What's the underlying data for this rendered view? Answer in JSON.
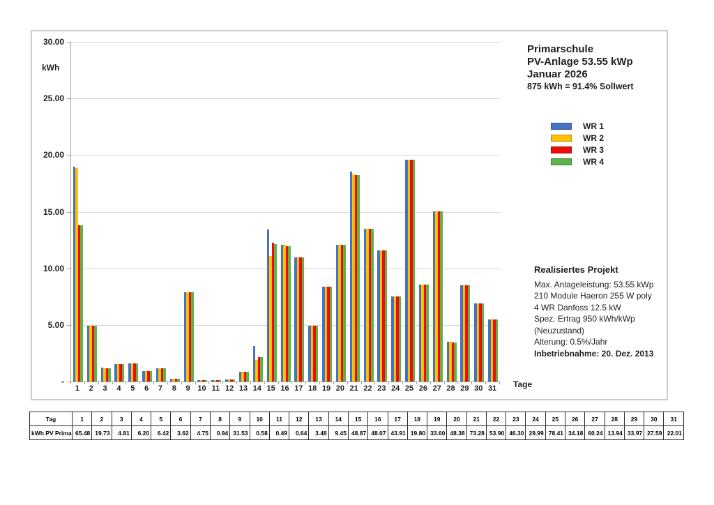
{
  "chart": {
    "y_axis_label": "kWh",
    "x_axis_label": "Tage",
    "y_ticks": [
      "30.00",
      "25.00",
      "20.00",
      "15.00",
      "10.00",
      "5.00",
      "-"
    ],
    "title_lines": [
      "Primarschule",
      "PV-Anlage 53.55 kWp",
      "Januar 2026"
    ],
    "subtitle": "875 kWh = 91.4% Sollwert",
    "project_info": {
      "heading": "Realisiertes Projekt",
      "lines": [
        "Max. Anlageleistung: 53.55 kWp",
        "210 Module Haeron 255 W poly",
        "4 WR Danfoss 12.5 kW",
        "Spez. Ertrag 950 kWh/kWp",
        "(Neuzustand)",
        "Alterung: 0.5%/Jahr"
      ],
      "commissioning": "Inbetriebnahme: 20. Dez. 2013"
    }
  },
  "chart_data": {
    "type": "bar",
    "title": "Primarschule PV-Anlage 53.55 kWp Januar 2026",
    "xlabel": "Tage",
    "ylabel": "kWh",
    "ylim": [
      0,
      30
    ],
    "grid": true,
    "legend_position": "right",
    "categories": [
      1,
      2,
      3,
      4,
      5,
      6,
      7,
      8,
      9,
      10,
      11,
      12,
      13,
      14,
      15,
      16,
      17,
      18,
      19,
      20,
      21,
      22,
      23,
      24,
      25,
      26,
      27,
      28,
      29,
      30,
      31
    ],
    "series": [
      {
        "name": "WR 1",
        "color": "#4472C4",
        "values": [
          19.0,
          4.94,
          1.21,
          1.55,
          1.61,
          0.91,
          1.19,
          0.24,
          7.89,
          0.15,
          0.13,
          0.16,
          0.87,
          3.17,
          13.4,
          12.1,
          10.98,
          4.95,
          8.4,
          12.1,
          18.55,
          13.48,
          11.58,
          7.5,
          19.61,
          8.55,
          15.06,
          3.49,
          8.5,
          6.9,
          5.51
        ]
      },
      {
        "name": "WR 2",
        "color": "#FFC000",
        "values": [
          18.85,
          4.93,
          1.2,
          1.55,
          1.61,
          0.91,
          1.19,
          0.24,
          7.88,
          0.15,
          0.12,
          0.16,
          0.87,
          1.92,
          11.1,
          12.05,
          10.98,
          4.95,
          8.4,
          12.1,
          18.27,
          13.48,
          11.58,
          7.5,
          19.6,
          8.55,
          15.06,
          3.49,
          8.49,
          6.9,
          5.5
        ]
      },
      {
        "name": "WR 3",
        "color": "#EE0A0A",
        "values": [
          13.82,
          4.93,
          1.2,
          1.55,
          1.6,
          0.9,
          1.19,
          0.23,
          7.88,
          0.14,
          0.12,
          0.16,
          0.87,
          2.18,
          12.25,
          11.97,
          10.98,
          4.95,
          8.4,
          12.09,
          18.25,
          13.47,
          11.57,
          7.5,
          19.6,
          8.54,
          15.06,
          3.48,
          8.49,
          6.9,
          5.5
        ]
      },
      {
        "name": "WR 4",
        "color": "#5BB44A",
        "values": [
          13.81,
          4.93,
          1.2,
          1.55,
          1.6,
          0.9,
          1.18,
          0.23,
          7.88,
          0.14,
          0.12,
          0.16,
          0.87,
          2.18,
          12.12,
          11.95,
          10.97,
          4.95,
          8.4,
          12.09,
          18.21,
          13.47,
          11.57,
          7.49,
          19.6,
          8.54,
          15.06,
          3.48,
          8.49,
          6.89,
          5.5
        ]
      }
    ]
  },
  "table": {
    "row1_label": "Tag",
    "row2_label": "kWh PV Primar",
    "days": [
      "1",
      "2",
      "3",
      "4",
      "5",
      "6",
      "7",
      "8",
      "9",
      "10",
      "11",
      "12",
      "13",
      "14",
      "15",
      "16",
      "17",
      "18",
      "19",
      "20",
      "21",
      "22",
      "23",
      "24",
      "25",
      "26",
      "27",
      "28",
      "29",
      "30",
      "31"
    ],
    "values": [
      "65.48",
      "19.73",
      "4.81",
      "6.20",
      "6.42",
      "3.62",
      "4.75",
      "0.94",
      "31.53",
      "0.58",
      "0.49",
      "0.64",
      "3.48",
      "9.45",
      "48.87",
      "48.07",
      "43.91",
      "19.80",
      "33.60",
      "48.38",
      "73.28",
      "53.90",
      "46.30",
      "29.99",
      "78.41",
      "34.18",
      "60.24",
      "13.94",
      "33.97",
      "27.59",
      "22.01"
    ]
  }
}
